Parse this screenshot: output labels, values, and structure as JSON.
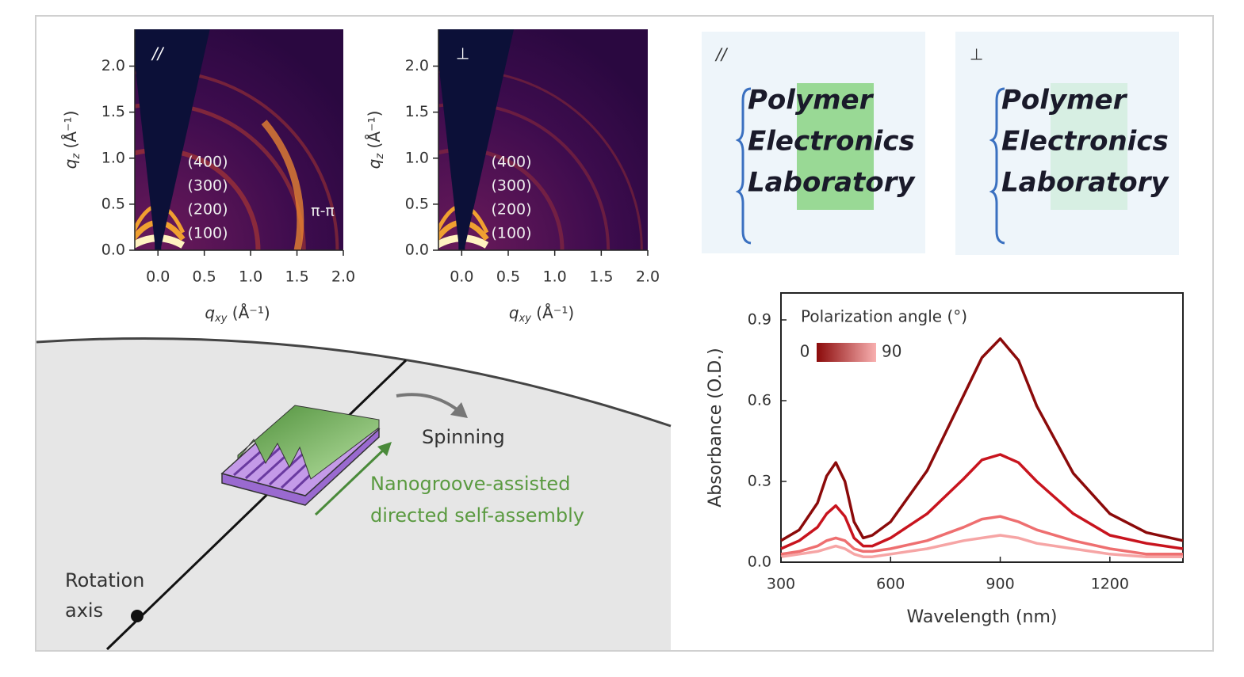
{
  "chart_data": [
    {
      "type": "heatmap-image",
      "annotation": "//",
      "xlabel": {
        "symbol": "q",
        "sub": "xy",
        "unit": " (Å⁻¹)"
      },
      "ylabel": {
        "symbol": "q",
        "sub": "z",
        "unit": " (Å⁻¹)"
      },
      "xlim": [
        -0.25,
        2.0
      ],
      "ylim": [
        0,
        2.4
      ],
      "xticks": [
        {
          "value": 0,
          "label": "0.0"
        },
        {
          "value": 0.5,
          "label": "0.5"
        },
        {
          "value": 1,
          "label": "1.0"
        },
        {
          "value": 1.5,
          "label": "1.5"
        },
        {
          "value": 2,
          "label": "2.0"
        }
      ],
      "yticks": [
        {
          "value": 0,
          "label": "0.0"
        },
        {
          "value": 0.5,
          "label": "0.5"
        },
        {
          "value": 1,
          "label": "1.0"
        },
        {
          "value": 1.5,
          "label": "1.5"
        },
        {
          "value": 2,
          "label": "2.0"
        }
      ],
      "peaks": [
        "(400)",
        "(300)",
        "(200)",
        "(100)"
      ],
      "pi_label": "π-π"
    },
    {
      "type": "heatmap-image",
      "annotation": "⊥",
      "xlabel": {
        "symbol": "q",
        "sub": "xy",
        "unit": " (Å⁻¹)"
      },
      "ylabel": {
        "symbol": "q",
        "sub": "z",
        "unit": " (Å⁻¹)"
      },
      "xlim": [
        -0.25,
        2.0
      ],
      "ylim": [
        0,
        2.4
      ],
      "xticks": [
        {
          "value": 0,
          "label": "0.0"
        },
        {
          "value": 0.5,
          "label": "0.5"
        },
        {
          "value": 1,
          "label": "1.0"
        },
        {
          "value": 1.5,
          "label": "1.5"
        },
        {
          "value": 2,
          "label": "2.0"
        }
      ],
      "yticks": [
        {
          "value": 0,
          "label": "0.0"
        },
        {
          "value": 0.5,
          "label": "0.5"
        },
        {
          "value": 1,
          "label": "1.0"
        },
        {
          "value": 1.5,
          "label": "1.5"
        },
        {
          "value": 2,
          "label": "2.0"
        }
      ],
      "peaks": [
        "(400)",
        "(300)",
        "(200)",
        "(100)"
      ]
    },
    {
      "type": "line",
      "xlabel": "Wavelength (nm)",
      "ylabel": "Absorbance (O.D.)",
      "legend": {
        "title": "Polarization angle (°)",
        "min": 0,
        "max": 90,
        "colors": [
          "#8b0a0a",
          "#f8b0b0"
        ]
      },
      "xlim": [
        300,
        1400
      ],
      "ylim": [
        0,
        1.0
      ],
      "xticks": [
        300,
        600,
        900,
        1200
      ],
      "yticks": [
        {
          "value": 0,
          "label": "0.0"
        },
        {
          "value": 0.3,
          "label": "0.3"
        },
        {
          "value": 0.6,
          "label": "0.6"
        },
        {
          "value": 0.9,
          "label": "0.9"
        }
      ],
      "x": [
        300,
        350,
        400,
        425,
        450,
        475,
        500,
        525,
        550,
        600,
        700,
        800,
        850,
        900,
        950,
        1000,
        1100,
        1200,
        1300,
        1400
      ],
      "series": [
        {
          "color": "#8b0a0a",
          "values": [
            0.08,
            0.12,
            0.22,
            0.32,
            0.37,
            0.3,
            0.15,
            0.09,
            0.1,
            0.15,
            0.34,
            0.62,
            0.76,
            0.83,
            0.75,
            0.58,
            0.33,
            0.18,
            0.11,
            0.08
          ]
        },
        {
          "color": "#c8141e",
          "values": [
            0.05,
            0.08,
            0.13,
            0.18,
            0.21,
            0.17,
            0.09,
            0.06,
            0.06,
            0.09,
            0.18,
            0.31,
            0.38,
            0.4,
            0.37,
            0.3,
            0.18,
            0.1,
            0.07,
            0.05
          ]
        },
        {
          "color": "#ee6f70",
          "values": [
            0.03,
            0.04,
            0.06,
            0.08,
            0.09,
            0.08,
            0.05,
            0.04,
            0.04,
            0.05,
            0.08,
            0.13,
            0.16,
            0.17,
            0.15,
            0.12,
            0.08,
            0.05,
            0.03,
            0.03
          ]
        },
        {
          "color": "#f6a5a5",
          "values": [
            0.02,
            0.03,
            0.04,
            0.05,
            0.06,
            0.05,
            0.03,
            0.02,
            0.02,
            0.03,
            0.05,
            0.08,
            0.09,
            0.1,
            0.09,
            0.07,
            0.05,
            0.03,
            0.02,
            0.02
          ]
        }
      ]
    }
  ],
  "photos": [
    {
      "label": "//",
      "lines": [
        "Polymer",
        "Electronics",
        "Laboratory"
      ]
    },
    {
      "label": "⊥",
      "lines": [
        "Polymer",
        "Electronics",
        "Laboratory"
      ]
    }
  ],
  "schematic": {
    "spinning": "Spinning",
    "assembly": [
      "Nanogroove-assisted",
      "directed self-assembly"
    ],
    "rotation": [
      "Rotation",
      "axis"
    ]
  }
}
